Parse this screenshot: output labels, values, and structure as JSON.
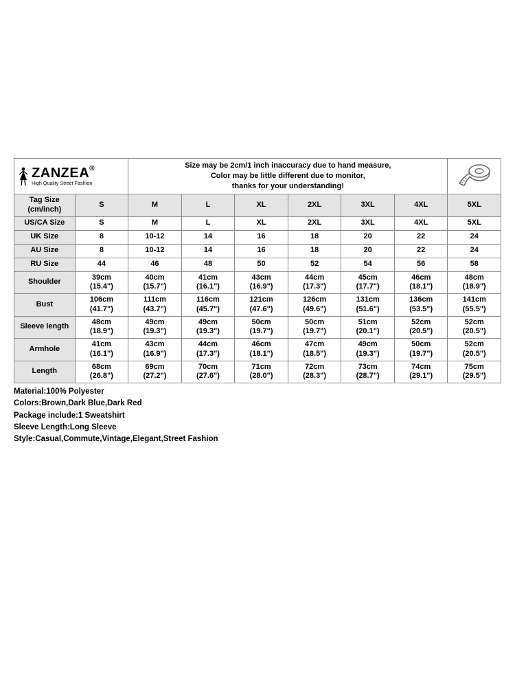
{
  "brand": {
    "name": "ZANZEA",
    "reg": "®",
    "tagline": "High Quality Street Fashion"
  },
  "note": {
    "l1": "Size may be 2cm/1 inch inaccuracy due to hand measure,",
    "l2": "Color may be little different due to monitor,",
    "l3": "thanks for your understanding!"
  },
  "columns": [
    "S",
    "M",
    "L",
    "XL",
    "2XL",
    "3XL",
    "4XL",
    "5XL"
  ],
  "header_label_l1": "Tag Size",
  "header_label_l2": "(cm/inch)",
  "single_rows": [
    {
      "label": "US/CA Size",
      "vals": [
        "S",
        "M",
        "L",
        "XL",
        "2XL",
        "3XL",
        "4XL",
        "5XL"
      ]
    },
    {
      "label": "UK Size",
      "vals": [
        "8",
        "10-12",
        "14",
        "16",
        "18",
        "20",
        "22",
        "24"
      ]
    },
    {
      "label": "AU Size",
      "vals": [
        "8",
        "10-12",
        "14",
        "16",
        "18",
        "20",
        "22",
        "24"
      ]
    },
    {
      "label": "RU Size",
      "vals": [
        "44",
        "46",
        "48",
        "50",
        "52",
        "54",
        "56",
        "58"
      ]
    }
  ],
  "double_rows": [
    {
      "label": "Shoulder",
      "cm": [
        "39cm",
        "40cm",
        "41cm",
        "43cm",
        "44cm",
        "45cm",
        "46cm",
        "48cm"
      ],
      "in": [
        "(15.4\")",
        "(15.7\")",
        "(16.1\")",
        "(16.9\")",
        "(17.3\")",
        "(17.7\")",
        "(18.1\")",
        "(18.9\")"
      ]
    },
    {
      "label": "Bust",
      "cm": [
        "106cm",
        "111cm",
        "116cm",
        "121cm",
        "126cm",
        "131cm",
        "136cm",
        "141cm"
      ],
      "in": [
        "(41.7\")",
        "(43.7\")",
        "(45.7\")",
        "(47.6\")",
        "(49.6\")",
        "(51.6\")",
        "(53.5\")",
        "(55.5\")"
      ]
    },
    {
      "label": "Sleeve length",
      "cm": [
        "48cm",
        "49cm",
        "49cm",
        "50cm",
        "50cm",
        "51cm",
        "52cm",
        "52cm"
      ],
      "in": [
        "(18.9\")",
        "(19.3\")",
        "(19.3\")",
        "(19.7\")",
        "(19.7\")",
        "(20.1\")",
        "(20.5\")",
        "(20.5\")"
      ]
    },
    {
      "label": "Armhole",
      "cm": [
        "41cm",
        "43cm",
        "44cm",
        "46cm",
        "47cm",
        "49cm",
        "50cm",
        "52cm"
      ],
      "in": [
        "(16.1\")",
        "(16.9\")",
        "(17.3\")",
        "(18.1\")",
        "(18.5\")",
        "(19.3\")",
        "(19.7\")",
        "(20.5\")"
      ]
    },
    {
      "label": "Length",
      "cm": [
        "68cm",
        "69cm",
        "70cm",
        "71cm",
        "72cm",
        "73cm",
        "74cm",
        "75cm"
      ],
      "in": [
        "(26.8\")",
        "(27.2\")",
        "(27.6\")",
        "(28.0\")",
        "(28.3\")",
        "(28.7\")",
        "(29.1\")",
        "(29.5\")"
      ]
    }
  ],
  "details": [
    "Material:100% Polyester",
    "Colors:Brown,Dark Blue,Dark Red",
    "Package include:1 Sweatshirt",
    "Sleeve Length:Long Sleeve",
    "Style:Casual,Commute,Vintage,Elegant,Street Fashion"
  ],
  "style": {
    "border_color": "#888888",
    "header_bg": "#e4e4e4",
    "text_color": "#000000",
    "page_bg": "#ffffff"
  }
}
